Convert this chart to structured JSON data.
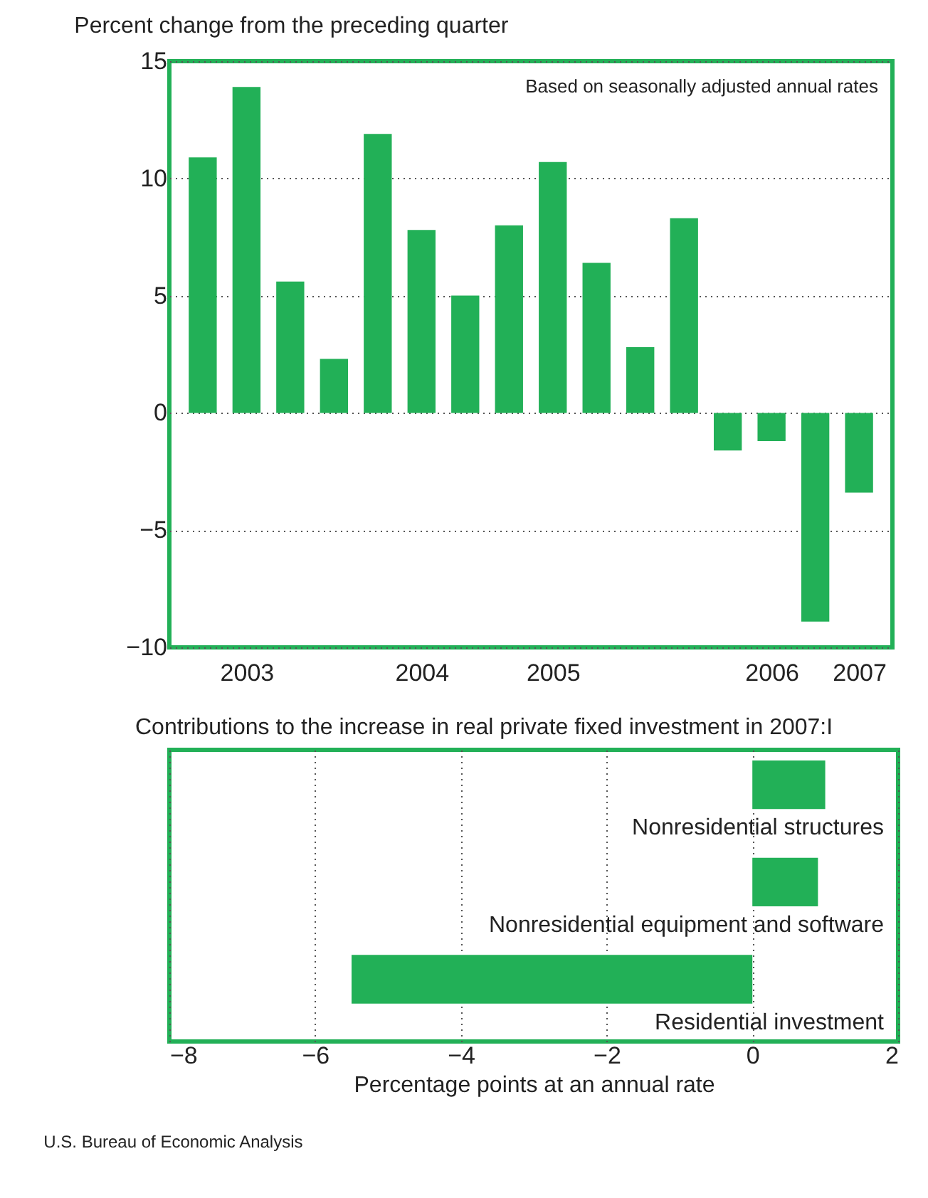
{
  "chart_data": [
    {
      "type": "bar",
      "title": "Percent change from the preceding quarter",
      "annotations": [
        "Based on seasonally adjusted annual rates"
      ],
      "categories": [
        null,
        "2003",
        null,
        null,
        null,
        "2004",
        null,
        null,
        "2005",
        null,
        null,
        null,
        null,
        "2006",
        null,
        "2007"
      ],
      "values": [
        10.9,
        13.9,
        5.6,
        2.3,
        11.9,
        7.8,
        5.0,
        8.0,
        10.7,
        6.4,
        2.8,
        8.3,
        -1.6,
        -1.2,
        -8.9,
        -3.4
      ],
      "color": "#22b057",
      "ylim": [
        -10,
        15
      ],
      "yticks": [
        {
          "value": -10,
          "label": "−10"
        },
        {
          "value": -5,
          "label": "−5"
        },
        0,
        5,
        10,
        15
      ],
      "grid": "y"
    },
    {
      "type": "bar",
      "orientation": "horizontal",
      "title": "Contributions to the increase in real private fixed investment in 2007:I",
      "categories": [
        "Nonresidential structures",
        "Nonresidential equipment and software",
        "Residential investment"
      ],
      "values": [
        1.0,
        0.9,
        -5.5
      ],
      "color": "#22b057",
      "xlim": [
        -8,
        2
      ],
      "xticks": [
        {
          "value": -8,
          "label": "−8"
        },
        {
          "value": -6,
          "label": "−6"
        },
        {
          "value": -4,
          "label": "−4"
        },
        {
          "value": -2,
          "label": "−2"
        },
        0,
        2
      ],
      "xlabel": "Percentage points at an annual rate",
      "grid": "x",
      "annotations": [
        "U.S. Bureau of Economic Analysis"
      ]
    }
  ]
}
